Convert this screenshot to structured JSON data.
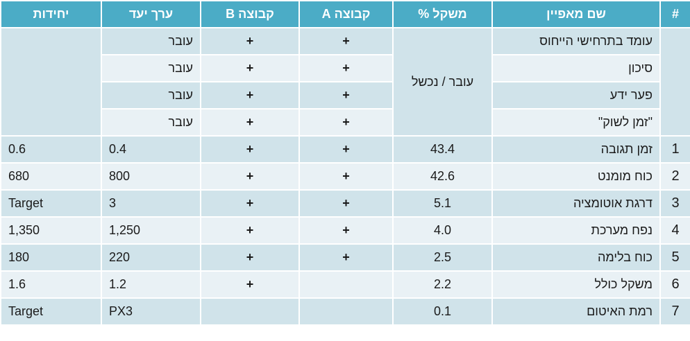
{
  "table": {
    "header": [
      "#",
      "שם מאפיין",
      "משקל %",
      "קבוצה A",
      "קבוצה B",
      "ערך יעד",
      "יחידות"
    ],
    "pass_fail_group": {
      "weight": "עובר / נכשל",
      "rows": [
        {
          "name": "עומד בתרחישי הייחוס",
          "group_a": "+",
          "group_b": "+",
          "target": "עובר"
        },
        {
          "name": "סיכון",
          "group_a": "+",
          "group_b": "+",
          "target": "עובר"
        },
        {
          "name": "פער ידע",
          "group_a": "+",
          "group_b": "+",
          "target": "עובר"
        },
        {
          "name": "\"זמן לשוק\"",
          "group_a": "+",
          "group_b": "+",
          "target": "עובר"
        }
      ]
    },
    "rows": [
      {
        "num": "1",
        "name": "זמן תגובה",
        "weight": "43.4",
        "group_a": "+",
        "group_b": "+",
        "target": "0.4",
        "units": "0.6"
      },
      {
        "num": "2",
        "name": "כוח מומנט",
        "weight": "42.6",
        "group_a": "+",
        "group_b": "+",
        "target": "800",
        "units": "680"
      },
      {
        "num": "3",
        "name": "דרגת אוטומציה",
        "weight": "5.1",
        "group_a": "+",
        "group_b": "+",
        "target": "3",
        "units": "Target"
      },
      {
        "num": "4",
        "name": "נפח מערכת",
        "weight": "4.0",
        "group_a": "+",
        "group_b": "+",
        "target": "1,250",
        "units": "1,350"
      },
      {
        "num": "5",
        "name": "כוח בלימה",
        "weight": "2.5",
        "group_a": "+",
        "group_b": "+",
        "target": "220",
        "units": "180"
      },
      {
        "num": "6",
        "name": "משקל כולל",
        "weight": "2.2",
        "group_a": null,
        "group_b": "+",
        "target": "1.2",
        "units": "1.6"
      },
      {
        "num": "7",
        "name": "רמת האיטום",
        "weight": "0.1",
        "group_a": null,
        "group_b": null,
        "target": "PX3",
        "units": "Target"
      }
    ]
  }
}
